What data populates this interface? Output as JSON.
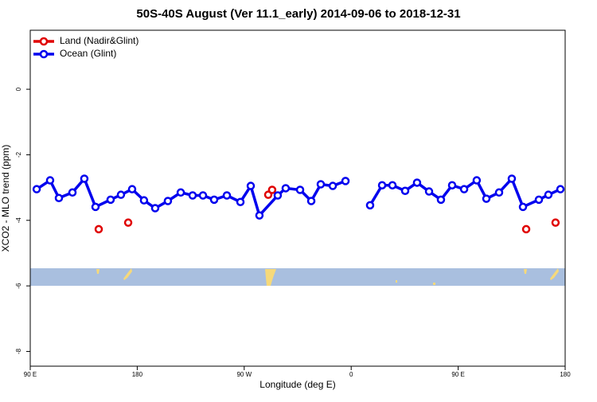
{
  "chart_data": {
    "type": "line",
    "title": "50S-40S August (Ver 11.1_early)   2014-09-06 to 2018-12-31",
    "x_label": "Longitude (deg E)",
    "y_label": "XCO2 - MLO trend (ppm)",
    "xlim": [
      90,
      540
    ],
    "ylim": [
      -8.45,
      1.8
    ],
    "xticks": [
      {
        "value": 90,
        "label": "90 E"
      },
      180,
      {
        "value": 270,
        "label": "90 W"
      },
      {
        "value": 360,
        "label": "0"
      },
      {
        "value": 450,
        "label": "90 E"
      },
      {
        "value": 540,
        "label": "180"
      }
    ],
    "yticks": [
      0,
      -2,
      -4,
      -6,
      -8
    ],
    "legend": "top-left",
    "series": [
      {
        "name": "Land (Nadir&Glint)",
        "color": "#e00000",
        "lines": false,
        "x": [
          147.6,
          172.4,
          290.2,
          293.5,
          507.2,
          531.9
        ],
        "values": [
          -4.27,
          -4.07,
          -3.22,
          -3.07,
          -4.27,
          -4.07
        ]
      },
      {
        "name": "Ocean (Glint)",
        "color": "#0000ee",
        "lines": true,
        "x": [
          95.4,
          106.7,
          114.1,
          125.5,
          135.5,
          144.9,
          157.6,
          166.3,
          175.7,
          185.7,
          195.1,
          205.8,
          216.6,
          226.6,
          235.3,
          244.7,
          255.4,
          266.8,
          275.5,
          282.8,
          298.2,
          304.9,
          317.0,
          326.4,
          334.4,
          344.5,
          355.2,
          365.5,
          375.9,
          386.0,
          394.7,
          405.4,
          415.4,
          425.5,
          435.5,
          444.9,
          455.0,
          465.6,
          473.7,
          484.4,
          495.1,
          504.5,
          517.9,
          525.9,
          536.0
        ],
        "values": [
          -3.05,
          -2.78,
          -3.32,
          -3.15,
          -2.73,
          -3.59,
          -3.37,
          -3.22,
          -3.05,
          -3.39,
          -3.63,
          -3.41,
          -3.15,
          -3.24,
          -3.24,
          -3.37,
          -3.24,
          -3.44,
          -2.95,
          -3.85,
          -3.24,
          -3.02,
          -3.07,
          -3.41,
          -2.9,
          -2.95,
          -2.8,
          null,
          -3.54,
          -2.93,
          -2.93,
          -3.1,
          -2.85,
          -3.12,
          -3.37,
          -2.93,
          -3.05,
          -2.78,
          -3.34,
          -3.15,
          -2.73,
          -3.59,
          -3.37,
          -3.22,
          -3.05
        ]
      }
    ]
  }
}
